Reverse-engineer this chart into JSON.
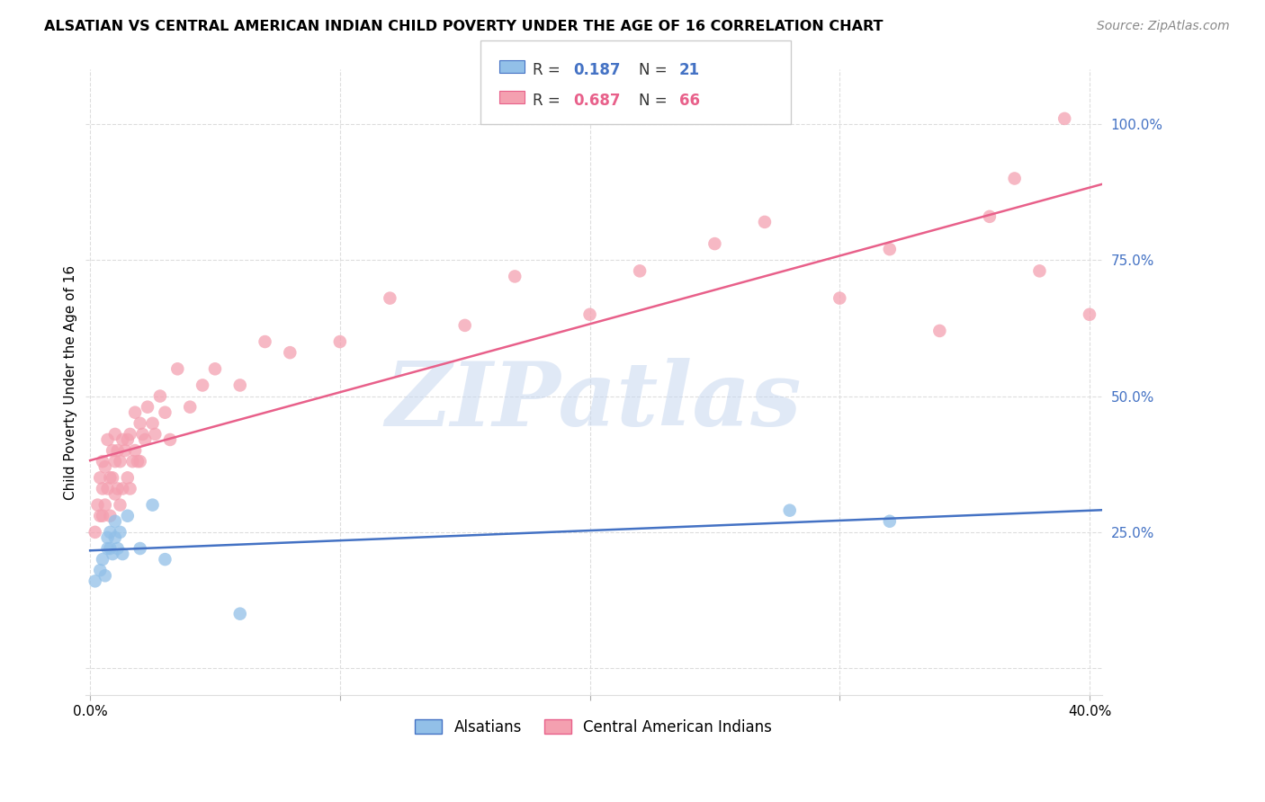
{
  "title": "ALSATIAN VS CENTRAL AMERICAN INDIAN CHILD POVERTY UNDER THE AGE OF 16 CORRELATION CHART",
  "source": "Source: ZipAtlas.com",
  "ylabel": "Child Poverty Under the Age of 16",
  "ylim": [
    -0.05,
    1.1
  ],
  "xlim": [
    -0.002,
    0.405
  ],
  "yticks": [
    0.0,
    0.25,
    0.5,
    0.75,
    1.0
  ],
  "ytick_labels": [
    "",
    "25.0%",
    "50.0%",
    "75.0%",
    "100.0%"
  ],
  "xticks": [
    0.0,
    0.1,
    0.2,
    0.3,
    0.4
  ],
  "xtick_labels": [
    "0.0%",
    "",
    "",
    "",
    "40.0%"
  ],
  "watermark": "ZIPatlas",
  "legend_label1": "Alsatians",
  "legend_label2": "Central American Indians",
  "color_blue": "#92C0E8",
  "color_pink": "#F4A0B0",
  "line_color_blue": "#4472C4",
  "line_color_pink": "#E8608A",
  "als_r": "0.187",
  "als_n": "21",
  "cai_r": "0.687",
  "cai_n": "66",
  "alsatian_x": [
    0.002,
    0.004,
    0.005,
    0.006,
    0.007,
    0.007,
    0.008,
    0.008,
    0.009,
    0.01,
    0.01,
    0.011,
    0.012,
    0.013,
    0.015,
    0.02,
    0.025,
    0.03,
    0.06,
    0.28,
    0.32
  ],
  "alsatian_y": [
    0.16,
    0.18,
    0.2,
    0.17,
    0.22,
    0.24,
    0.22,
    0.25,
    0.21,
    0.24,
    0.27,
    0.22,
    0.25,
    0.21,
    0.28,
    0.22,
    0.3,
    0.2,
    0.1,
    0.29,
    0.27
  ],
  "cai_x": [
    0.002,
    0.003,
    0.004,
    0.004,
    0.005,
    0.005,
    0.005,
    0.006,
    0.006,
    0.007,
    0.007,
    0.008,
    0.008,
    0.009,
    0.009,
    0.01,
    0.01,
    0.01,
    0.011,
    0.011,
    0.012,
    0.012,
    0.013,
    0.013,
    0.014,
    0.015,
    0.015,
    0.016,
    0.016,
    0.017,
    0.018,
    0.018,
    0.019,
    0.02,
    0.02,
    0.021,
    0.022,
    0.023,
    0.025,
    0.026,
    0.028,
    0.03,
    0.032,
    0.035,
    0.04,
    0.045,
    0.05,
    0.06,
    0.07,
    0.08,
    0.1,
    0.12,
    0.15,
    0.17,
    0.2,
    0.22,
    0.25,
    0.27,
    0.3,
    0.32,
    0.34,
    0.36,
    0.37,
    0.38,
    0.39,
    0.4
  ],
  "cai_y": [
    0.25,
    0.3,
    0.28,
    0.35,
    0.28,
    0.33,
    0.38,
    0.3,
    0.37,
    0.33,
    0.42,
    0.28,
    0.35,
    0.35,
    0.4,
    0.32,
    0.38,
    0.43,
    0.33,
    0.4,
    0.3,
    0.38,
    0.33,
    0.42,
    0.4,
    0.35,
    0.42,
    0.33,
    0.43,
    0.38,
    0.4,
    0.47,
    0.38,
    0.38,
    0.45,
    0.43,
    0.42,
    0.48,
    0.45,
    0.43,
    0.5,
    0.47,
    0.42,
    0.55,
    0.48,
    0.52,
    0.55,
    0.52,
    0.6,
    0.58,
    0.6,
    0.68,
    0.63,
    0.72,
    0.65,
    0.73,
    0.78,
    0.82,
    0.68,
    0.77,
    0.62,
    0.83,
    0.9,
    0.73,
    1.01,
    0.65
  ]
}
